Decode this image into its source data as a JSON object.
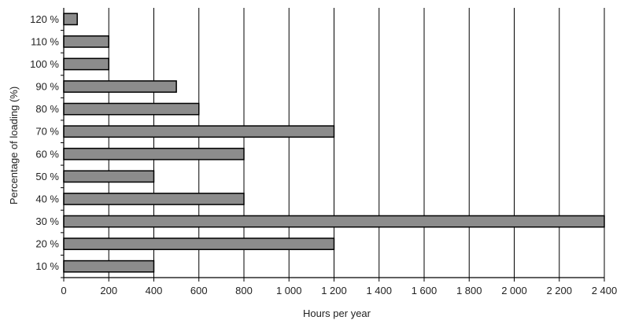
{
  "chart_data": {
    "type": "bar",
    "orientation": "horizontal",
    "title": "",
    "xlabel": "Hours per year",
    "ylabel": "Percentage of loading   (%)",
    "categories": [
      "10 %",
      "20 %",
      "30 %",
      "40 %",
      "50 %",
      "60 %",
      "70 %",
      "80 %",
      "90 %",
      "100 %",
      "110 %",
      "120 %"
    ],
    "values": [
      400,
      1200,
      2400,
      800,
      400,
      800,
      1200,
      600,
      500,
      200,
      200,
      60
    ],
    "xlim": [
      0,
      2400
    ],
    "x_ticks": [
      0,
      200,
      400,
      600,
      800,
      1000,
      1200,
      1400,
      1600,
      1800,
      2000,
      2200,
      2400
    ],
    "x_tick_labels": [
      "0",
      "200",
      "400",
      "600",
      "800",
      "1 000",
      "1 200",
      "1 400",
      "1 600",
      "1 800",
      "2 000",
      "2 200",
      "2 400"
    ],
    "grid": "vertical",
    "legend": "none",
    "bar_color": "#8c8c8c",
    "bar_edge_color": "#000000",
    "grid_color": "#000000"
  }
}
